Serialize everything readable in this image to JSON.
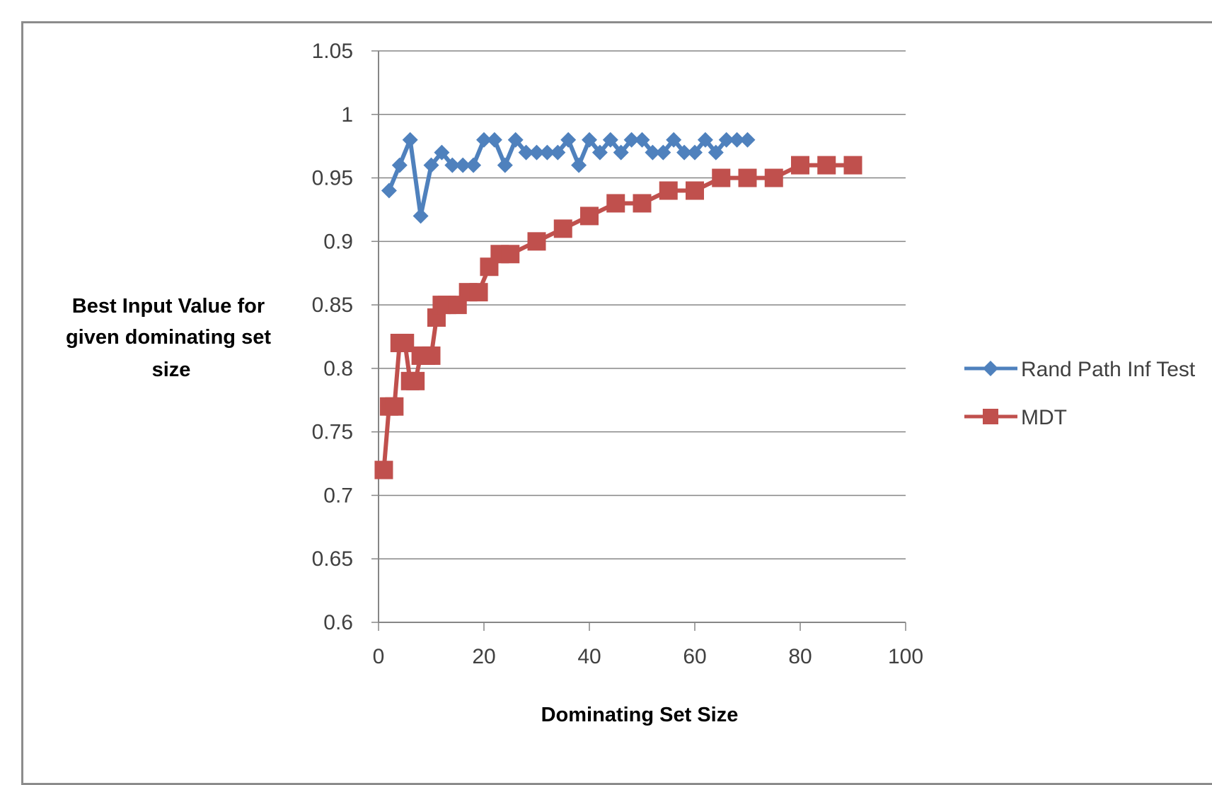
{
  "chart_data": {
    "type": "line",
    "title": "",
    "xlabel": "Dominating Set Size",
    "ylabel_lines": [
      "Best Input Value  for",
      "given dominating set",
      "size"
    ],
    "xlim": [
      0,
      100
    ],
    "ylim": [
      0.6,
      1.05
    ],
    "x_ticks": [
      0,
      20,
      40,
      60,
      80,
      100
    ],
    "x_tick_labels": [
      "0",
      "20",
      "40",
      "60",
      "80",
      "100"
    ],
    "y_ticks": [
      0.6,
      0.65,
      0.7,
      0.75,
      0.8,
      0.85,
      0.9,
      0.95,
      1.0,
      1.05
    ],
    "y_tick_labels": [
      "0.6",
      "0.65",
      "0.7",
      "0.75",
      "0.8",
      "0.85",
      "0.9",
      "0.95",
      "1",
      "1.05"
    ],
    "grid": "horizontal",
    "legend_position": "right",
    "series": [
      {
        "name": "Rand Path Inf Test",
        "color": "#4f81bd",
        "marker": "diamond",
        "x": [
          2,
          4,
          6,
          8,
          10,
          12,
          14,
          16,
          18,
          20,
          22,
          24,
          26,
          28,
          30,
          32,
          34,
          36,
          38,
          40,
          42,
          44,
          46,
          48,
          50,
          52,
          54,
          56,
          58,
          60,
          62,
          64,
          66,
          68,
          70
        ],
        "y": [
          0.94,
          0.96,
          0.98,
          0.92,
          0.96,
          0.97,
          0.96,
          0.96,
          0.96,
          0.98,
          0.98,
          0.96,
          0.98,
          0.97,
          0.97,
          0.97,
          0.97,
          0.98,
          0.96,
          0.98,
          0.97,
          0.98,
          0.97,
          0.98,
          0.98,
          0.97,
          0.97,
          0.98,
          0.97,
          0.97,
          0.98,
          0.97,
          0.98,
          0.98,
          0.98
        ]
      },
      {
        "name": "MDT",
        "color": "#c0504d",
        "marker": "square",
        "x": [
          1,
          2,
          3,
          4,
          5,
          6,
          7,
          8,
          9,
          10,
          11,
          12,
          13,
          15,
          17,
          19,
          21,
          23,
          25,
          30,
          35,
          40,
          45,
          50,
          55,
          60,
          65,
          70,
          75,
          80,
          85,
          90
        ],
        "y": [
          0.72,
          0.77,
          0.77,
          0.82,
          0.82,
          0.79,
          0.79,
          0.81,
          0.81,
          0.81,
          0.84,
          0.85,
          0.85,
          0.85,
          0.86,
          0.86,
          0.88,
          0.89,
          0.89,
          0.9,
          0.91,
          0.92,
          0.93,
          0.93,
          0.94,
          0.94,
          0.95,
          0.95,
          0.95,
          0.96,
          0.96,
          0.96
        ]
      }
    ]
  }
}
